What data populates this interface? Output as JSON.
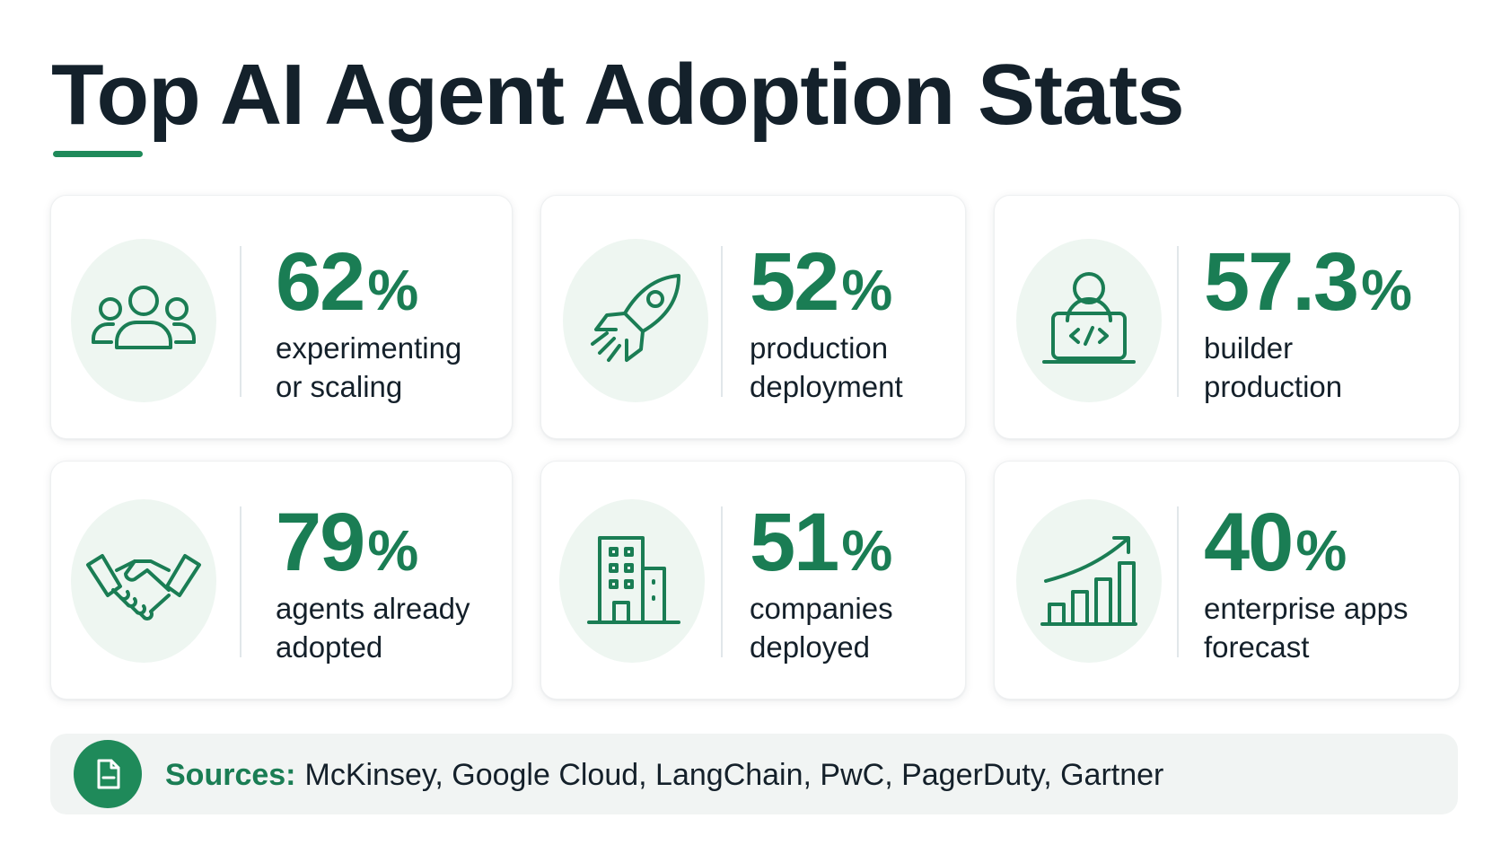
{
  "title": "Top AI Agent Adoption Stats",
  "accent_color": "#1a7d54",
  "stats": [
    {
      "value": "62",
      "unit": "%",
      "label_line1": "experimenting",
      "label_line2": "or scaling",
      "icon": "people-group-icon"
    },
    {
      "value": "52",
      "unit": "%",
      "label_line1": "production",
      "label_line2": "deployment",
      "icon": "rocket-icon"
    },
    {
      "value": "57.3",
      "unit": "%",
      "label_line1": "builder",
      "label_line2": "production",
      "icon": "developer-laptop-icon"
    },
    {
      "value": "79",
      "unit": "%",
      "label_line1": "agents already",
      "label_line2": "adopted",
      "icon": "handshake-icon"
    },
    {
      "value": "51",
      "unit": "%",
      "label_line1": "companies",
      "label_line2": "deployed",
      "icon": "office-building-icon"
    },
    {
      "value": "40",
      "unit": "%",
      "label_line1": "enterprise apps",
      "label_line2": "forecast",
      "icon": "growth-chart-icon"
    }
  ],
  "sources": {
    "label": "Sources:",
    "text": "McKinsey, Google Cloud, LangChain, PwC, PagerDuty, Gartner",
    "icon": "document-icon"
  }
}
